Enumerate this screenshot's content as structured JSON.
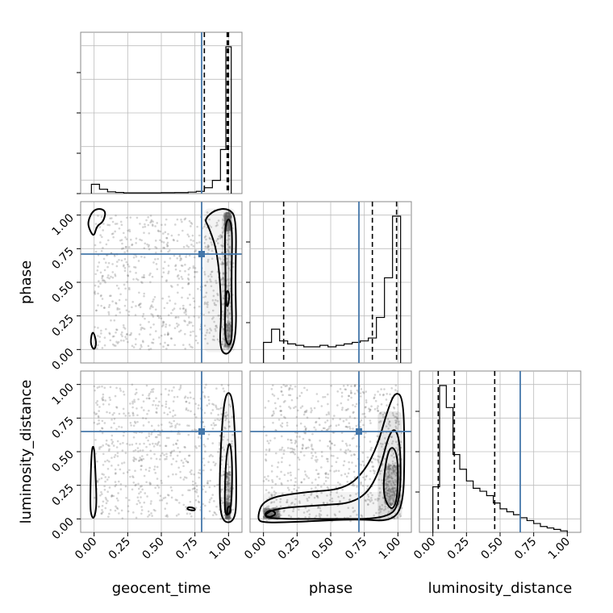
{
  "chart_data": {
    "type": "corner",
    "parameters": [
      "geocent_time",
      "phase",
      "luminosity_distance"
    ],
    "axis_range": [
      -0.1,
      1.1
    ],
    "tick_labels": [
      "0.00",
      "0.25",
      "0.50",
      "0.75",
      "1.00"
    ],
    "grid": true,
    "truth_color": "#4477aa",
    "truths": {
      "geocent_time": 0.8,
      "phase": 0.71,
      "luminosity_distance": 0.65
    },
    "quantiles": {
      "geocent_time": [
        0.82,
        0.99,
        1.0
      ],
      "phase": [
        0.15,
        0.81,
        0.99
      ],
      "luminosity_distance": [
        0.04,
        0.16,
        0.46
      ]
    },
    "histograms": {
      "geocent_time": {
        "bin_edges": [
          -0.02,
          0.04,
          0.1,
          0.16,
          0.22,
          0.3,
          0.4,
          0.5,
          0.6,
          0.7,
          0.76,
          0.82,
          0.88,
          0.94,
          0.98,
          1.02
        ],
        "counts": [
          0.063,
          0.03,
          0.012,
          0.008,
          0.005,
          0.005,
          0.005,
          0.006,
          0.007,
          0.01,
          0.015,
          0.04,
          0.09,
          0.3,
          1.0
        ]
      },
      "phase": {
        "bin_edges": [
          0.0,
          0.06,
          0.12,
          0.18,
          0.24,
          0.3,
          0.36,
          0.42,
          0.48,
          0.54,
          0.6,
          0.66,
          0.72,
          0.78,
          0.84,
          0.9,
          0.96,
          1.02
        ],
        "counts": [
          0.14,
          0.23,
          0.15,
          0.13,
          0.12,
          0.11,
          0.11,
          0.12,
          0.11,
          0.12,
          0.13,
          0.14,
          0.15,
          0.17,
          0.31,
          0.58,
          1.0
        ]
      },
      "luminosity_distance": {
        "bin_edges": [
          0.0,
          0.05,
          0.1,
          0.15,
          0.2,
          0.25,
          0.3,
          0.35,
          0.4,
          0.45,
          0.5,
          0.55,
          0.6,
          0.65,
          0.7,
          0.75,
          0.8,
          0.85,
          0.9,
          0.95,
          1.0
        ],
        "counts": [
          0.31,
          1.0,
          0.85,
          0.53,
          0.43,
          0.35,
          0.3,
          0.28,
          0.25,
          0.2,
          0.16,
          0.14,
          0.12,
          0.1,
          0.08,
          0.06,
          0.04,
          0.03,
          0.02,
          0.01
        ]
      }
    },
    "contours": {
      "phase_vs_geocent_time": [
        [
          [
            0.92,
            0.72
          ],
          [
            0.95,
            0.3
          ],
          [
            0.93,
            0.0
          ],
          [
            1.0,
            -0.05
          ],
          [
            1.06,
            0.1
          ],
          [
            1.05,
            0.5
          ],
          [
            1.06,
            0.98
          ],
          [
            1.0,
            1.05
          ],
          [
            0.9,
            1.04
          ],
          [
            0.82,
            0.97
          ],
          [
            0.85,
            0.92
          ]
        ],
        [
          [
            0.97,
            0.1
          ],
          [
            1.0,
            0.02
          ],
          [
            1.03,
            0.08
          ],
          [
            1.02,
            0.5
          ],
          [
            1.03,
            0.9
          ],
          [
            1.0,
            0.99
          ],
          [
            0.97,
            0.9
          ],
          [
            0.98,
            0.5
          ]
        ],
        [
          [
            -0.05,
            0.95
          ],
          [
            0.0,
            1.05
          ],
          [
            0.09,
            1.04
          ],
          [
            0.07,
            0.95
          ],
          [
            0.02,
            0.92
          ],
          [
            0.0,
            0.84
          ],
          [
            -0.03,
            0.88
          ]
        ],
        [
          [
            -0.03,
            0.05
          ],
          [
            -0.01,
            0.15
          ],
          [
            0.02,
            0.05
          ],
          [
            0.0,
            -0.01
          ]
        ],
        [
          [
            0.99,
            0.3
          ],
          [
            1.01,
            0.4
          ],
          [
            0.99,
            0.45
          ],
          [
            0.98,
            0.38
          ]
        ]
      ],
      "luminosity_distance_vs_geocent_time": [
        [
          [
            0.93,
            0.2
          ],
          [
            0.95,
            0.7
          ],
          [
            0.98,
            0.95
          ],
          [
            1.03,
            0.92
          ],
          [
            1.05,
            0.6
          ],
          [
            1.06,
            0.2
          ],
          [
            1.05,
            -0.02
          ],
          [
            0.95,
            -0.03
          ]
        ],
        [
          [
            0.97,
            0.1
          ],
          [
            0.98,
            0.45
          ],
          [
            1.01,
            0.6
          ],
          [
            1.03,
            0.4
          ],
          [
            1.02,
            0.05
          ],
          [
            0.98,
            0.02
          ]
        ],
        [
          [
            -0.03,
            0.1
          ],
          [
            -0.02,
            0.52
          ],
          [
            0.0,
            0.55
          ],
          [
            0.01,
            0.35
          ],
          [
            0.02,
            0.1
          ],
          [
            0.0,
            0.0
          ],
          [
            -0.02,
            0.02
          ]
        ],
        [
          [
            0.69,
            0.07
          ],
          [
            0.75,
            0.06
          ],
          [
            0.75,
            0.08
          ],
          [
            0.7,
            0.09
          ]
        ],
        [
          [
            0.99,
            0.03
          ],
          [
            1.02,
            0.05
          ],
          [
            1.01,
            0.1
          ],
          [
            0.99,
            0.08
          ]
        ]
      ],
      "luminosity_distance_vs_phase": [
        [
          [
            -0.05,
            0.0
          ],
          [
            0.0,
            0.15
          ],
          [
            0.3,
            0.2
          ],
          [
            0.6,
            0.22
          ],
          [
            0.75,
            0.35
          ],
          [
            0.85,
            0.55
          ],
          [
            0.92,
            0.8
          ],
          [
            0.98,
            0.95
          ],
          [
            1.04,
            0.9
          ],
          [
            1.05,
            0.5
          ],
          [
            1.04,
            0.1
          ],
          [
            0.95,
            -0.02
          ],
          [
            0.7,
            0.0
          ],
          [
            0.3,
            -0.02
          ],
          [
            0.0,
            -0.03
          ]
        ],
        [
          [
            0.0,
            0.03
          ],
          [
            0.1,
            0.08
          ],
          [
            0.4,
            0.1
          ],
          [
            0.7,
            0.12
          ],
          [
            0.85,
            0.3
          ],
          [
            0.95,
            0.7
          ],
          [
            1.02,
            0.6
          ],
          [
            1.02,
            0.1
          ],
          [
            0.9,
            0.0
          ],
          [
            0.5,
            0.0
          ],
          [
            0.05,
            0.0
          ]
        ],
        [
          [
            0.88,
            0.2
          ],
          [
            0.93,
            0.55
          ],
          [
            1.0,
            0.5
          ],
          [
            1.0,
            0.15
          ],
          [
            0.95,
            0.05
          ]
        ],
        [
          [
            0.0,
            0.03
          ],
          [
            0.05,
            0.07
          ],
          [
            0.1,
            0.04
          ],
          [
            0.05,
            0.01
          ]
        ]
      ]
    },
    "cell_densities": {
      "phase_vs_geocent_time": [
        {
          "x": [
            0.82,
            1.05
          ],
          "y": [
            -0.02,
            1.05
          ],
          "weight": 0.12
        },
        {
          "x": [
            0.95,
            1.03
          ],
          "y": [
            0.0,
            1.0
          ],
          "weight": 0.22
        },
        {
          "x": [
            0.97,
            1.02
          ],
          "y": [
            0.88,
            1.02
          ],
          "weight": 0.55
        },
        {
          "x": [
            0.97,
            1.02
          ],
          "y": [
            0.02,
            0.2
          ],
          "weight": 0.3
        }
      ],
      "luminosity_distance_vs_geocent_time": [
        {
          "x": [
            0.94,
            1.04
          ],
          "y": [
            -0.02,
            0.9
          ],
          "weight": 0.1
        },
        {
          "x": [
            0.97,
            1.02
          ],
          "y": [
            0.0,
            0.35
          ],
          "weight": 0.3
        },
        {
          "x": [
            0.98,
            1.01
          ],
          "y": [
            0.0,
            0.12
          ],
          "weight": 0.55
        }
      ],
      "luminosity_distance_vs_phase": [
        {
          "x": [
            0.0,
            0.95
          ],
          "y": [
            -0.02,
            0.2
          ],
          "weight": 0.12
        },
        {
          "x": [
            0.85,
            1.03
          ],
          "y": [
            0.0,
            0.8
          ],
          "weight": 0.25
        },
        {
          "x": [
            0.9,
            1.02
          ],
          "y": [
            0.1,
            0.4
          ],
          "weight": 0.4
        },
        {
          "x": [
            0.0,
            0.12
          ],
          "y": [
            0.0,
            0.08
          ],
          "weight": 0.5
        }
      ]
    },
    "scatter_seed": 17
  }
}
